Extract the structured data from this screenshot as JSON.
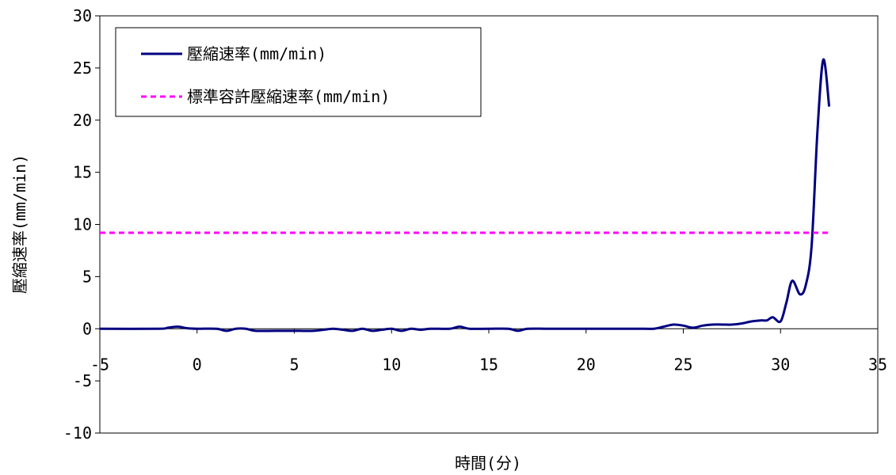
{
  "chart_data": {
    "type": "line",
    "xlabel": "時間(分)",
    "ylabel": "壓縮速率(mm/min)",
    "xlim": [
      -5,
      35
    ],
    "ylim": [
      -10,
      30
    ],
    "xticks": [
      -5,
      0,
      5,
      10,
      15,
      20,
      25,
      30,
      35
    ],
    "yticks": [
      -10,
      -5,
      0,
      5,
      10,
      15,
      20,
      25,
      30
    ],
    "x_tick_labels": [
      "-5",
      "0",
      "5",
      "10",
      "15",
      "20",
      "25",
      "30",
      "35"
    ],
    "y_tick_labels": [
      "-10",
      "-5",
      "0",
      "5",
      "10",
      "15",
      "20",
      "25",
      "30"
    ],
    "grid": false,
    "legend_position": "top-left",
    "series": [
      {
        "name": "壓縮速率(mm/min)",
        "color": "#000080",
        "style": "solid",
        "x": [
          -5,
          -2,
          -1.5,
          -1,
          -0.5,
          0,
          1,
          1.5,
          2,
          2.5,
          3,
          4,
          5,
          6,
          6.5,
          7,
          7.5,
          8,
          8.5,
          9,
          9.5,
          10,
          10.5,
          11,
          11.5,
          12,
          13,
          13.5,
          14,
          15,
          16,
          16.5,
          17,
          18,
          19,
          20,
          21,
          22,
          23,
          23.5,
          24,
          24.5,
          25,
          25.5,
          26,
          26.5,
          27,
          27.5,
          28,
          28.5,
          29,
          29.3,
          29.6,
          30,
          30.3,
          30.6,
          31,
          31.3,
          31.6,
          31.9,
          32.2,
          32.5
        ],
        "values": [
          0,
          0,
          0.1,
          0.2,
          0.05,
          0,
          0,
          -0.2,
          0,
          0,
          -0.2,
          -0.2,
          -0.2,
          -0.2,
          -0.1,
          0,
          -0.1,
          -0.2,
          0,
          -0.2,
          -0.1,
          0,
          -0.2,
          0,
          -0.1,
          0,
          0,
          0.2,
          0,
          0,
          0,
          -0.2,
          0,
          0,
          0,
          0,
          0,
          0,
          0,
          0,
          0.2,
          0.4,
          0.3,
          0.1,
          0.3,
          0.4,
          0.4,
          0.4,
          0.5,
          0.7,
          0.8,
          0.8,
          1.1,
          0.7,
          2.5,
          4.6,
          3.3,
          4.2,
          8,
          19,
          25.8,
          21.3
        ]
      },
      {
        "name": "標準容許壓縮速率(mm/min)",
        "color": "#ff00ff",
        "style": "dashed",
        "x": [
          -5,
          32.5
        ],
        "values": [
          9.2,
          9.2
        ]
      }
    ]
  }
}
